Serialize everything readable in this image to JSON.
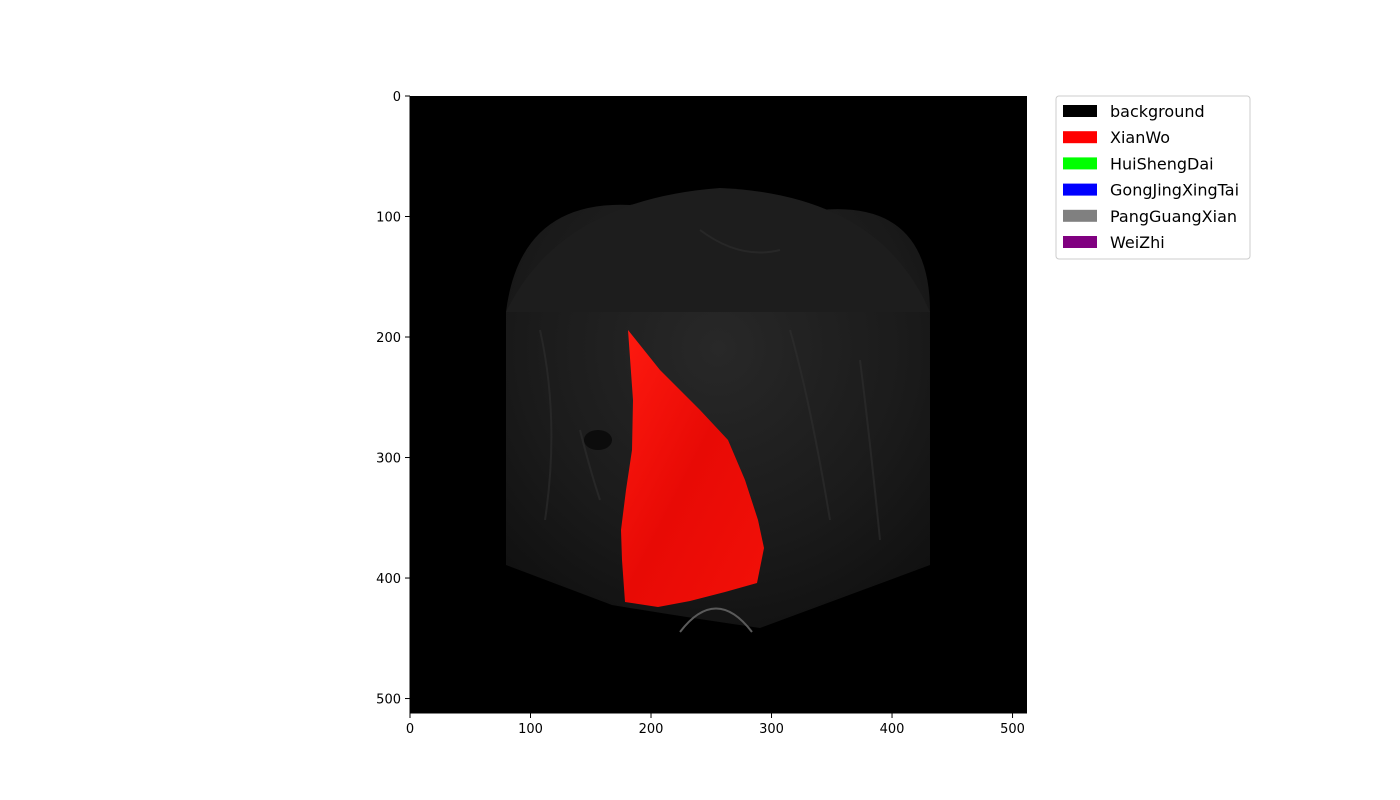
{
  "axes": {
    "x_ticks": [
      "0",
      "100",
      "200",
      "300",
      "400",
      "500"
    ],
    "y_ticks": [
      "0",
      "100",
      "200",
      "300",
      "400",
      "500"
    ]
  },
  "legend": {
    "placement": "outside-top-right",
    "items": [
      {
        "label": "background",
        "color": "#000000"
      },
      {
        "label": "XianWo",
        "color": "#ff0000"
      },
      {
        "label": "HuiShengDai",
        "color": "#00ff00"
      },
      {
        "label": "GongJingXingTai",
        "color": "#0000ff"
      },
      {
        "label": "PangGuangXian",
        "color": "#808080"
      },
      {
        "label": "WeiZhi",
        "color": "#800080"
      }
    ]
  },
  "image": {
    "description_kind": "ultrasound segmentation overlay",
    "overlay_label": "XianWo",
    "overlay_color": "#ff0000"
  }
}
